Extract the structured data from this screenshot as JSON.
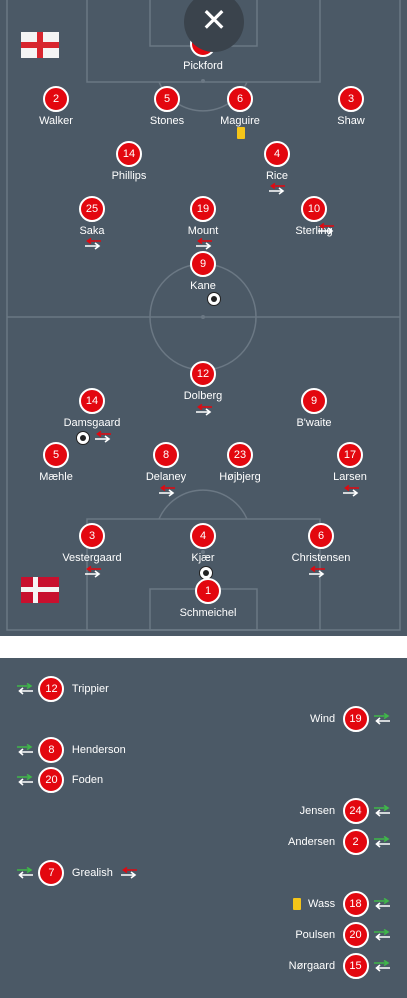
{
  "close_label": "✕",
  "england": {
    "flag": "england-flag",
    "players": [
      {
        "number": "1",
        "name": "Pickford"
      },
      {
        "number": "2",
        "name": "Walker"
      },
      {
        "number": "5",
        "name": "Stones"
      },
      {
        "number": "6",
        "name": "Maguire"
      },
      {
        "number": "3",
        "name": "Shaw"
      },
      {
        "number": "14",
        "name": "Phillips"
      },
      {
        "number": "4",
        "name": "Rice"
      },
      {
        "number": "25",
        "name": "Saka"
      },
      {
        "number": "19",
        "name": "Mount"
      },
      {
        "number": "10",
        "name": "Sterling"
      },
      {
        "number": "9",
        "name": "Kane"
      }
    ]
  },
  "denmark": {
    "flag": "denmark-flag",
    "players": [
      {
        "number": "12",
        "name": "Dolberg"
      },
      {
        "number": "14",
        "name": "Damsgaard"
      },
      {
        "number": "9",
        "name": "B'waite"
      },
      {
        "number": "5",
        "name": "Mæhle"
      },
      {
        "number": "8",
        "name": "Delaney"
      },
      {
        "number": "23",
        "name": "Højbjerg"
      },
      {
        "number": "17",
        "name": "Larsen"
      },
      {
        "number": "3",
        "name": "Vestergaard"
      },
      {
        "number": "4",
        "name": "Kjær"
      },
      {
        "number": "6",
        "name": "Christensen"
      },
      {
        "number": "1",
        "name": "Schmeichel"
      }
    ]
  },
  "bench": [
    {
      "number": "12",
      "name": "Trippier"
    },
    {
      "number": "19",
      "name": "Wind"
    },
    {
      "number": "8",
      "name": "Henderson"
    },
    {
      "number": "20",
      "name": "Foden"
    },
    {
      "number": "24",
      "name": "Jensen"
    },
    {
      "number": "2",
      "name": "Andersen"
    },
    {
      "number": "7",
      "name": "Grealish"
    },
    {
      "number": "18",
      "name": "Wass"
    },
    {
      "number": "20",
      "name": "Poulsen"
    },
    {
      "number": "15",
      "name": "Nørgaard"
    }
  ],
  "colors": {
    "pitch": "#4b5966",
    "shirt": "#e3070f",
    "sub_on": "#3fb849",
    "sub_off": "#e3070f",
    "yellow_card": "#f5c518"
  }
}
